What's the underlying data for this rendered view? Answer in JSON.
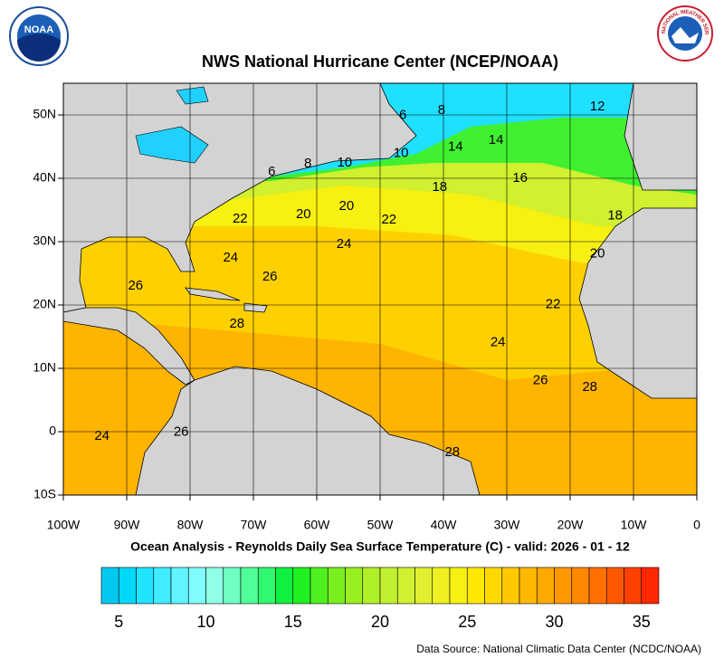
{
  "logos": {
    "noaa": "NOAA",
    "nws": "NATIONAL WEATHER SERVICE"
  },
  "header": {
    "title": "NWS National Hurricane Center (NCEP/NOAA)"
  },
  "map": {
    "xlim": [
      -100,
      0
    ],
    "ylim": [
      -10,
      55
    ],
    "xticks": [
      {
        "value": -100,
        "label": "100W"
      },
      {
        "value": -90,
        "label": "90W"
      },
      {
        "value": -80,
        "label": "80W"
      },
      {
        "value": -70,
        "label": "70W"
      },
      {
        "value": -60,
        "label": "60W"
      },
      {
        "value": -50,
        "label": "50W"
      },
      {
        "value": -40,
        "label": "40W"
      },
      {
        "value": -30,
        "label": "30W"
      },
      {
        "value": -20,
        "label": "20W"
      },
      {
        "value": -10,
        "label": "10W"
      },
      0
    ],
    "yticks": [
      {
        "value": -10,
        "label": "10S"
      },
      0,
      {
        "value": 10,
        "label": "10N"
      },
      {
        "value": 20,
        "label": "20N"
      },
      {
        "value": 30,
        "label": "30N"
      },
      {
        "value": 40,
        "label": "40N"
      },
      {
        "value": 50,
        "label": "50N"
      }
    ],
    "contour_labels": [
      {
        "value": 6,
        "lon": -46.4,
        "lat": 49.9
      },
      {
        "value": 8,
        "lon": -40.3,
        "lat": 50.7
      },
      {
        "value": 12,
        "lon": -15.7,
        "lat": 51.3
      },
      {
        "value": 14,
        "lon": -38.1,
        "lat": 44.9
      },
      {
        "value": 14,
        "lon": -31.7,
        "lat": 46
      },
      {
        "value": 10,
        "lon": -46.7,
        "lat": 43.9
      },
      {
        "value": 10,
        "lon": -55.6,
        "lat": 42.4
      },
      {
        "value": 8,
        "lon": -61.4,
        "lat": 42.3
      },
      {
        "value": 6,
        "lon": -67.1,
        "lat": 41
      },
      {
        "value": 18,
        "lon": -40.6,
        "lat": 38.6
      },
      {
        "value": 16,
        "lon": -27.9,
        "lat": 40
      },
      {
        "value": 18,
        "lon": -12.9,
        "lat": 34.1
      },
      {
        "value": 22,
        "lon": -72.1,
        "lat": 33.6
      },
      {
        "value": 20,
        "lon": -62.1,
        "lat": 34.3
      },
      {
        "value": 20,
        "lon": -55.3,
        "lat": 35.6
      },
      {
        "value": 22,
        "lon": -48.6,
        "lat": 33.4
      },
      {
        "value": 24,
        "lon": -55.7,
        "lat": 29.6
      },
      {
        "value": 24,
        "lon": -73.6,
        "lat": 27.4
      },
      {
        "value": 26,
        "lon": -67.4,
        "lat": 24.4
      },
      {
        "value": 26,
        "lon": -88.6,
        "lat": 23
      },
      {
        "value": 20,
        "lon": -15.7,
        "lat": 28.1
      },
      {
        "value": 22,
        "lon": -22.7,
        "lat": 20.1
      },
      {
        "value": 28,
        "lon": -72.6,
        "lat": 17
      },
      {
        "value": 24,
        "lon": -31.4,
        "lat": 14.1
      },
      {
        "value": 26,
        "lon": -24.7,
        "lat": 8.1
      },
      {
        "value": 28,
        "lon": -16.9,
        "lat": 7
      },
      {
        "value": 24,
        "lon": -93.9,
        "lat": -0.7
      },
      {
        "value": 26,
        "lon": -81.4,
        "lat": -0.1
      },
      {
        "value": 28,
        "lon": -38.6,
        "lat": -3.3
      }
    ]
  },
  "caption": "Ocean Analysis - Reynolds Daily Sea Surface Temperature (C) - valid: 2026 - 01 - 12",
  "colorbar": {
    "range": [
      4,
      36
    ],
    "colors": [
      "#00c8f0",
      "#00d8f8",
      "#20e4ff",
      "#40ecff",
      "#60f4ff",
      "#80fcff",
      "#90ffe8",
      "#70ffc0",
      "#50ff98",
      "#30f870",
      "#10f040",
      "#20f020",
      "#50f020",
      "#78f020",
      "#98f020",
      "#b0f028",
      "#c0f030",
      "#d0f030",
      "#e0f030",
      "#f0f020",
      "#f8f010",
      "#ffe800",
      "#ffd800",
      "#ffc800",
      "#ffb800",
      "#ffa800",
      "#ff9800",
      "#ff8800",
      "#ff7000",
      "#ff5800",
      "#ff4000",
      "#ff2800"
    ],
    "ticks": [
      5,
      10,
      15,
      20,
      25,
      30,
      35
    ]
  },
  "source": "Data Source: National Climatic Data Center (NCDC/NOAA)"
}
